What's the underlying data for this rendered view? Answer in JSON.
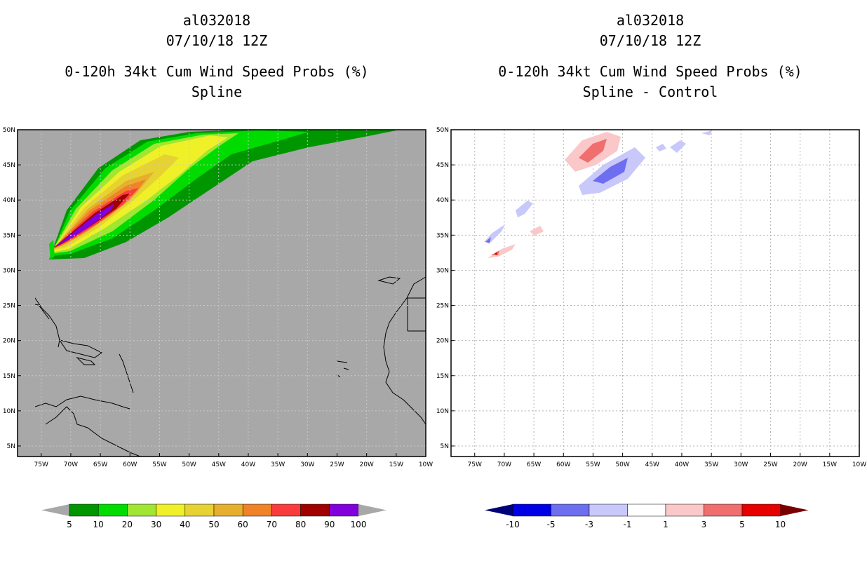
{
  "left_panel": {
    "title_line1": "al032018",
    "title_line2": "07/10/18 12Z",
    "title_line3": "0-120h 34kt Cum Wind Speed Probs (%)",
    "title_line4": "Spline",
    "background_color": "#a8a8a8"
  },
  "right_panel": {
    "title_line1": "al032018",
    "title_line2": "07/10/18 12Z",
    "title_line3": "0-120h 34kt Cum Wind Speed Probs (%)",
    "title_line4": "Spline - Control",
    "background_color": "#ffffff"
  },
  "axes": {
    "lat_labels": [
      "50N",
      "45N",
      "40N",
      "35N",
      "30N",
      "25N",
      "20N",
      "15N",
      "10N",
      "5N"
    ],
    "lon_labels": [
      "75W",
      "70W",
      "65W",
      "60W",
      "55W",
      "50W",
      "45W",
      "40W",
      "35W",
      "30W",
      "25W",
      "20W",
      "15W",
      "10W"
    ],
    "lat_range": [
      3.5,
      50
    ],
    "lon_range": [
      -79,
      -10
    ]
  },
  "legend_left": {
    "labels": [
      "5",
      "10",
      "20",
      "30",
      "40",
      "50",
      "60",
      "70",
      "80",
      "90",
      "100"
    ],
    "colors": [
      "#009600",
      "#00dc00",
      "#a0e632",
      "#f0f028",
      "#e6d232",
      "#e6af2d",
      "#f08228",
      "#fa3c3c",
      "#a00000",
      "#8200dc"
    ],
    "under_color": "#a8a8a8",
    "over_color": "#a8a8a8"
  },
  "legend_right": {
    "labels": [
      "-10",
      "-5",
      "-3",
      "-1",
      "1",
      "3",
      "5",
      "10"
    ],
    "colors": [
      "#0000e6",
      "#6e6ef0",
      "#c8c8fa",
      "#ffffff",
      "#fac8c8",
      "#f06e6e",
      "#e60000"
    ],
    "under_color": "#000078",
    "over_color": "#780000"
  }
}
